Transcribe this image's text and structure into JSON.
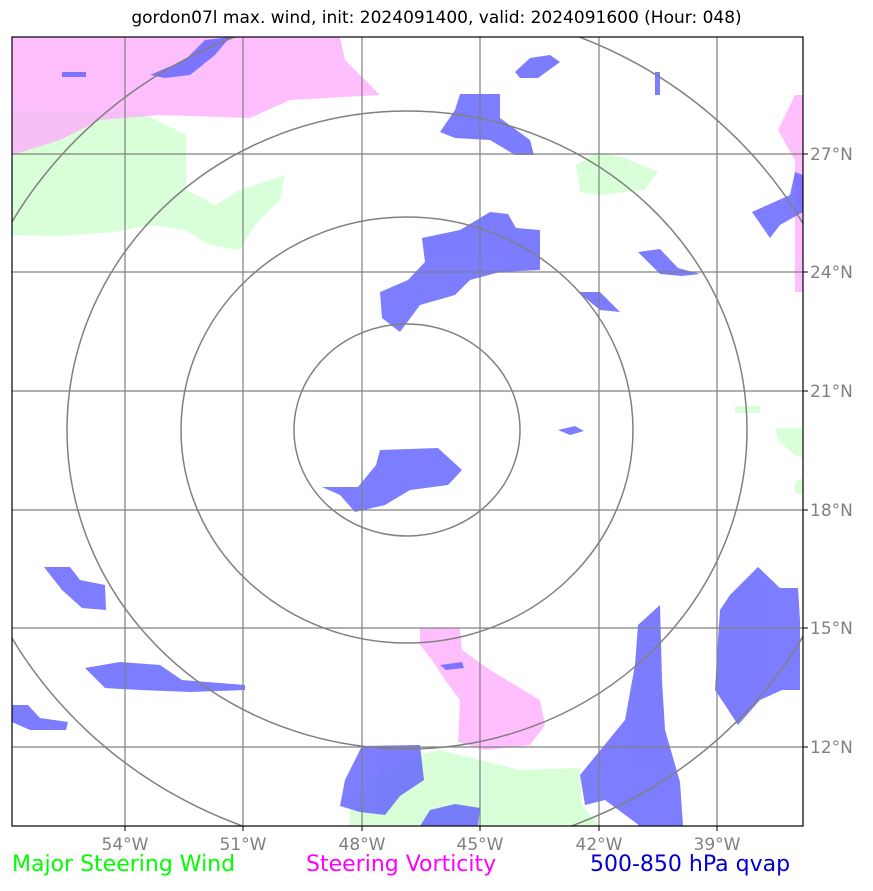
{
  "title": "gordon07l max. wind, init: 2024091400, valid: 2024091600 (Hour: 048)",
  "legend": {
    "wind": "Major Steering Wind",
    "vorticity": "Steering Vorticity",
    "qvap": "500-850 hPa qvap"
  },
  "colors": {
    "wind": "#ccffcc",
    "vorticity": "#ffaaff",
    "qvap": "#6666ff",
    "grid": "#808080",
    "rings": "#808080"
  },
  "map": {
    "lon_ticks": [
      "54°W",
      "51°W",
      "48°W",
      "45°W",
      "42°W",
      "39°W"
    ],
    "lat_ticks": [
      "27°N",
      "24°N",
      "21°N",
      "18°N",
      "15°N",
      "12°N"
    ],
    "lon_values": [
      -54,
      -51,
      -48,
      -45,
      -42,
      -39
    ],
    "lat_values": [
      27,
      24,
      21,
      18,
      15,
      12
    ],
    "storm_center": {
      "lon": -47.0,
      "lat": 20.1
    },
    "range_rings_deg": [
      2.9,
      5.7,
      8.6,
      11.4
    ]
  }
}
